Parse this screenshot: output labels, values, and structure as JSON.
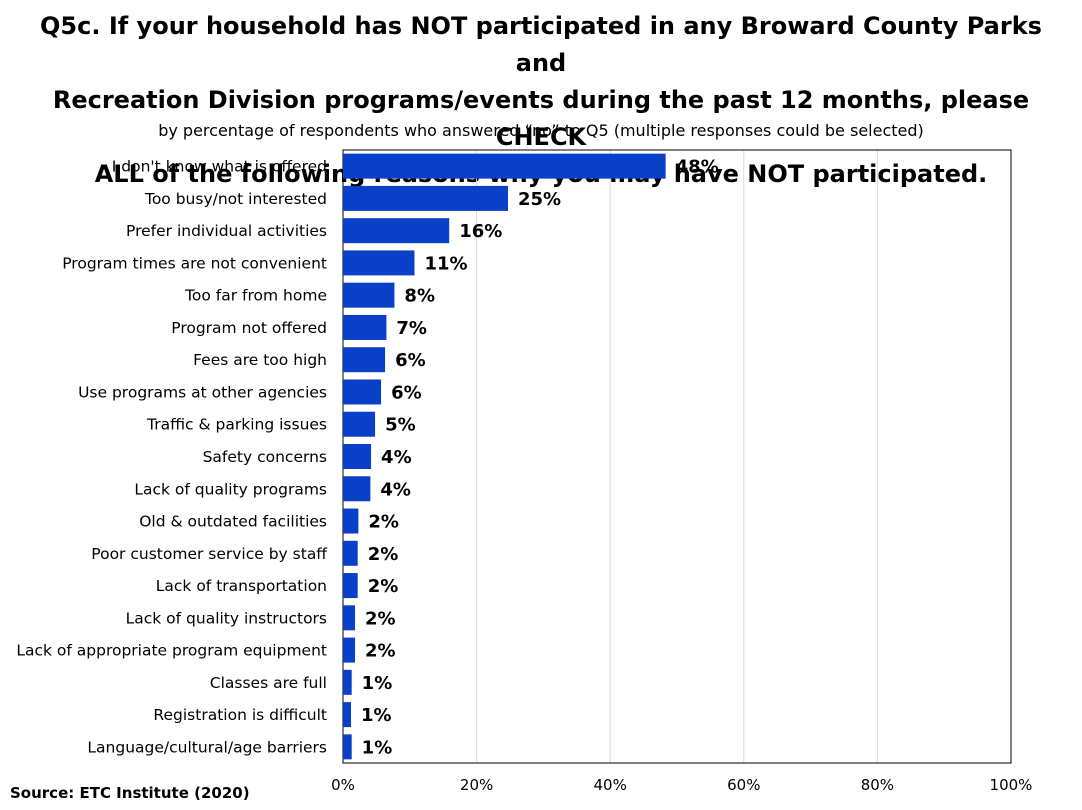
{
  "chart_data": {
    "type": "bar",
    "orientation": "horizontal",
    "title": "Q5c. If your household has NOT participated in any Broward County Parks and Recreation Division programs/events during the past 12 months, please CHECK ALL of the following reasons why you may have NOT participated.",
    "subtitle": "by percentage of respondents who answered “no” to Q5 (multiple responses could be selected)",
    "categories": [
      "I don't know what is offered",
      "Too busy/not interested",
      "Prefer individual activities",
      "Program times are not convenient",
      "Too far from home",
      "Program not offered",
      "Fees are too high",
      "Use programs at other agencies",
      "Traffic & parking issues",
      "Safety concerns",
      "Lack of quality programs",
      "Old & outdated facilities",
      "Poor customer service by staff",
      "Lack of transportation",
      "Lack of quality instructors",
      "Lack of appropriate program equipment",
      "Classes are full",
      "Registration is difficult",
      "Language/cultural/age barriers"
    ],
    "values": [
      48.3,
      24.7,
      15.9,
      10.7,
      7.7,
      6.5,
      6.3,
      5.7,
      4.8,
      4.2,
      4.1,
      2.3,
      2.2,
      2.2,
      1.8,
      1.8,
      1.3,
      1.2,
      1.3
    ],
    "data_labels": [
      "48%",
      "25%",
      "16%",
      "11%",
      "8%",
      "7%",
      "6%",
      "6%",
      "5%",
      "4%",
      "4%",
      "2%",
      "2%",
      "2%",
      "2%",
      "2%",
      "1%",
      "1%",
      "1%"
    ],
    "xlim": [
      0,
      100
    ],
    "xticks": [
      0,
      20,
      40,
      60,
      80,
      100
    ],
    "xtick_labels": [
      "0%",
      "20%",
      "40%",
      "60%",
      "80%",
      "100%"
    ],
    "grid": true,
    "legend": "none",
    "bar_color": "#0a3fc8"
  },
  "title_lines": [
    "Q5c. If your household has NOT participated in any Broward County Parks and",
    "Recreation Division programs/events during the past 12 months, please CHECK",
    "ALL of the following reasons why you may have NOT participated."
  ],
  "source": "Source:  ETC Institute (2020)"
}
